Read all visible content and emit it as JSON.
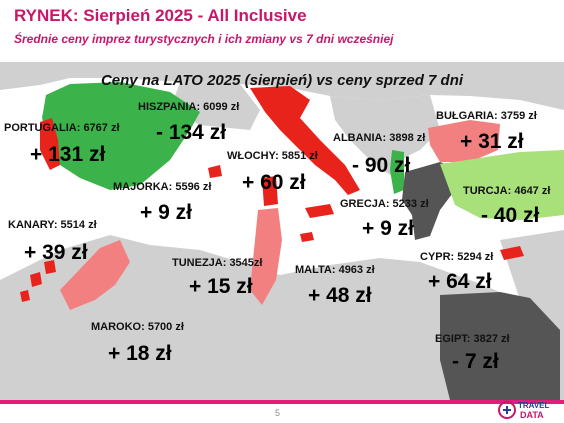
{
  "header": {
    "title": "RYNEK: Sierpień 2025 - All Inclusive",
    "subtitle": "Średnie ceny imprez turystycznych i ich zmiany vs 7 dni wcześniej"
  },
  "map_title": "Ceny na LATO 2025 (sierpień) vs ceny sprzed 7 dni",
  "destinations": [
    {
      "label": "PORTUGALIA: 6767 zł",
      "change": "+ 131 zł",
      "color": "#3cb34a"
    },
    {
      "label": "HISZPANIA: 6099 zł",
      "change": "- 134 zł",
      "color": "#3cb34a"
    },
    {
      "label": "WŁOCHY: 5851 zł",
      "change": "+ 60 zł",
      "color": "#e8231c"
    },
    {
      "label": "MAJORKA: 5596 zł",
      "change": "+ 9 zł",
      "color": "#e8231c"
    },
    {
      "label": "KANARY: 5514 zł",
      "change": "+ 39 zł",
      "color": "#f28080"
    },
    {
      "label": "ALBANIA: 3898 zł",
      "change": "- 90 zł",
      "color": "#3cb34a"
    },
    {
      "label": "BUŁGARIA: 3759 zł",
      "change": "+ 31 zł",
      "color": "#f28080"
    },
    {
      "label": "TURCJA: 4647 zł",
      "change": "- 40 zł",
      "color": "#a8e07a"
    },
    {
      "label": "GRECJA: 5233 zł",
      "change": "+ 9 zł",
      "color": "#555555"
    },
    {
      "label": "TUNEZJA: 3545zł",
      "change": "+ 15 zł",
      "color": "#f28080"
    },
    {
      "label": "MALTA: 4963 zł",
      "change": "+ 48 zł",
      "color": "#e8231c"
    },
    {
      "label": "CYPR: 5294 zł",
      "change": "+ 64 zł",
      "color": "#e8231c"
    },
    {
      "label": "MAROKO: 5700 zł",
      "change": "+ 18 zł",
      "color": "#f28080"
    },
    {
      "label": "EGIPT: 3827 zł",
      "change": "- 7 zł",
      "color": "#555555"
    }
  ],
  "colors": {
    "accent": "#c8176a",
    "sea": "#ffffff",
    "land": "#d0d0d0"
  },
  "footer": {
    "page_number": "5",
    "logo_text_1": "TRAVEL",
    "logo_text_2": "DATA"
  }
}
